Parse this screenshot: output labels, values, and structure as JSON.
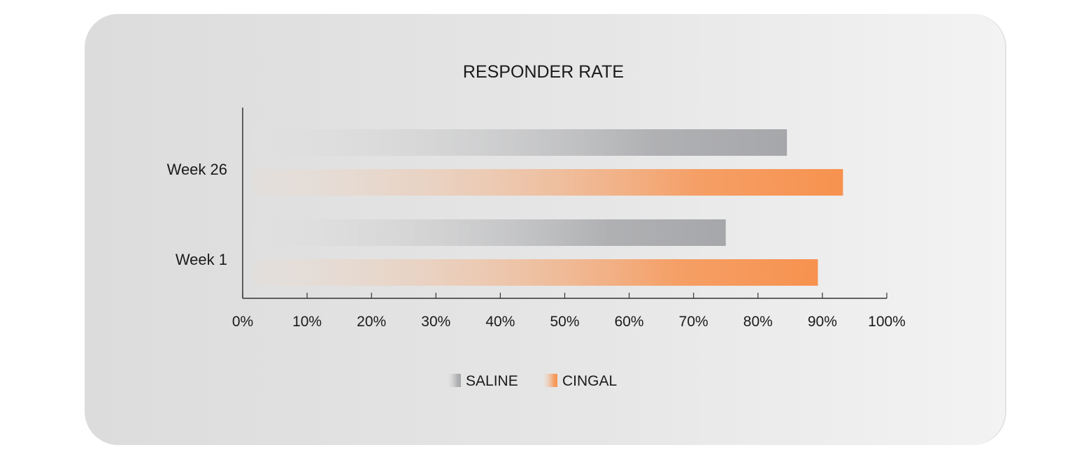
{
  "chart_data": {
    "type": "bar",
    "orientation": "horizontal",
    "title": "RESPONDER RATE",
    "categories": [
      "Week 26",
      "Week 1"
    ],
    "series": [
      {
        "name": "SALINE",
        "values": [
          84.5,
          75.0
        ],
        "color_start": "#e2e2e2",
        "color_end": "#a6a7aa"
      },
      {
        "name": "CINGAL",
        "values": [
          93.2,
          89.3
        ],
        "color_start": "#eddccf",
        "color_end": "#f7924f"
      }
    ],
    "xlim": [
      0,
      100
    ],
    "xticks": [
      "0%",
      "10%",
      "20%",
      "30%",
      "40%",
      "50%",
      "60%",
      "70%",
      "80%",
      "90%",
      "100%"
    ],
    "xlabel": "",
    "ylabel": "",
    "grid": false,
    "legend": "bottom-center"
  }
}
